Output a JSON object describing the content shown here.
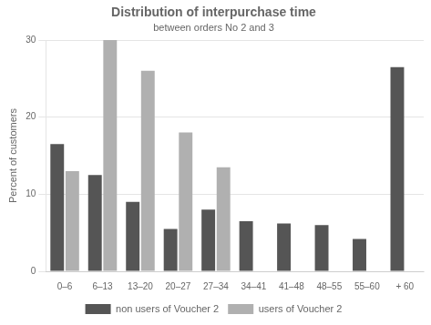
{
  "chart_data": {
    "type": "bar",
    "title": "Distribution of interpurchase time",
    "subtitle": "between orders No 2 and 3",
    "ylabel": "Percent of customers",
    "categories": [
      "0–6",
      "6–13",
      "13–20",
      "20–27",
      "27–34",
      "34–41",
      "41–48",
      "48–55",
      "55–60",
      "+ 60"
    ],
    "series": [
      {
        "name": "non users of Voucher 2",
        "color": "#555555",
        "values": [
          16.5,
          12.5,
          9.0,
          5.5,
          8.0,
          6.5,
          6.2,
          6.0,
          4.2,
          26.5
        ]
      },
      {
        "name": "users of Voucher 2",
        "color": "#b0b0b0",
        "values": [
          13.0,
          30.0,
          26.0,
          18.0,
          13.5,
          0,
          0,
          0,
          0,
          0
        ]
      }
    ],
    "ylim": [
      0,
      30
    ],
    "yticks": [
      0,
      10,
      20,
      30
    ],
    "grid": true,
    "legend": "bottom"
  }
}
